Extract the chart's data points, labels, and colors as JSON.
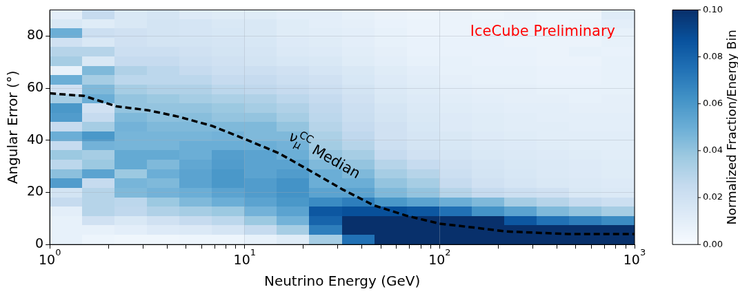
{
  "chart_data": {
    "type": "heatmap",
    "xlabel": "Neutrino Energy (GeV)",
    "ylabel": "Angular Error (°)",
    "clabel": "Normalized Fraction/Energy Bin",
    "log": "x",
    "grid": true,
    "xlim": [
      1,
      1000
    ],
    "xticks": [
      {
        "value": 1,
        "label": "10$^{0}$"
      },
      {
        "value": 2,
        "label": null
      },
      {
        "value": 3,
        "label": null
      },
      {
        "value": 4,
        "label": null
      },
      {
        "value": 5,
        "label": null
      },
      {
        "value": 6,
        "label": null
      },
      {
        "value": 7,
        "label": null
      },
      {
        "value": 8,
        "label": null
      },
      {
        "value": 9,
        "label": null
      },
      {
        "value": 10,
        "label": "10$^{1}$"
      },
      {
        "value": 20,
        "label": null
      },
      {
        "value": 30,
        "label": null
      },
      {
        "value": 40,
        "label": null
      },
      {
        "value": 50,
        "label": null
      },
      {
        "value": 60,
        "label": null
      },
      {
        "value": 70,
        "label": null
      },
      {
        "value": 80,
        "label": null
      },
      {
        "value": 90,
        "label": null
      },
      {
        "value": 100,
        "label": "10$^{2}$"
      },
      {
        "value": 200,
        "label": null
      },
      {
        "value": 300,
        "label": null
      },
      {
        "value": 400,
        "label": null
      },
      {
        "value": 500,
        "label": null
      },
      {
        "value": 600,
        "label": null
      },
      {
        "value": 700,
        "label": null
      },
      {
        "value": 800,
        "label": null
      },
      {
        "value": 900,
        "label": null
      },
      {
        "value": 1000,
        "label": "10$^{3}$"
      }
    ],
    "ylim": [
      0,
      90
    ],
    "yticks": [
      0,
      20,
      40,
      60,
      80
    ],
    "clim": [
      0,
      0.1
    ],
    "cticks": [
      {
        "value": 0,
        "label": "0.00"
      },
      0.02,
      0.04,
      0.06,
      0.08,
      {
        "value": 0.1,
        "label": "0.10"
      }
    ],
    "cells": [
      [
        0.01,
        0.025,
        0.015,
        0.017,
        0.013,
        0.012,
        0.012,
        0.01,
        0.01,
        0.008,
        0.006,
        0.005,
        0.006,
        0.005,
        0.006,
        0.005,
        0.005,
        0.012
      ],
      [
        0.015,
        0.012,
        0.015,
        0.018,
        0.017,
        0.015,
        0.015,
        0.012,
        0.01,
        0.009,
        0.007,
        0.006,
        0.006,
        0.006,
        0.006,
        0.005,
        0.006,
        0.01
      ],
      [
        0.05,
        0.022,
        0.02,
        0.018,
        0.017,
        0.016,
        0.015,
        0.012,
        0.011,
        0.01,
        0.008,
        0.006,
        0.006,
        0.006,
        0.006,
        0.006,
        0.006,
        0.008
      ],
      [
        0.02,
        0.015,
        0.02,
        0.018,
        0.018,
        0.017,
        0.016,
        0.013,
        0.012,
        0.01,
        0.008,
        0.007,
        0.007,
        0.007,
        0.006,
        0.006,
        0.006,
        0.008
      ],
      [
        0.03,
        0.03,
        0.022,
        0.022,
        0.02,
        0.018,
        0.017,
        0.014,
        0.013,
        0.011,
        0.009,
        0.007,
        0.007,
        0.007,
        0.007,
        0.006,
        0.008,
        0.007
      ],
      [
        0.035,
        0.015,
        0.025,
        0.025,
        0.022,
        0.02,
        0.018,
        0.016,
        0.015,
        0.012,
        0.01,
        0.008,
        0.008,
        0.007,
        0.007,
        0.006,
        0.006,
        0.008
      ],
      [
        0.008,
        0.045,
        0.032,
        0.028,
        0.025,
        0.022,
        0.022,
        0.02,
        0.017,
        0.015,
        0.012,
        0.01,
        0.008,
        0.008,
        0.008,
        0.007,
        0.007,
        0.008
      ],
      [
        0.05,
        0.035,
        0.028,
        0.028,
        0.028,
        0.025,
        0.025,
        0.022,
        0.02,
        0.016,
        0.013,
        0.011,
        0.009,
        0.008,
        0.008,
        0.007,
        0.007,
        0.008
      ],
      [
        0.02,
        0.045,
        0.035,
        0.032,
        0.032,
        0.028,
        0.027,
        0.025,
        0.022,
        0.018,
        0.014,
        0.012,
        0.01,
        0.009,
        0.009,
        0.008,
        0.008,
        0.008
      ],
      [
        0.035,
        0.05,
        0.04,
        0.038,
        0.035,
        0.033,
        0.032,
        0.028,
        0.025,
        0.02,
        0.015,
        0.013,
        0.011,
        0.01,
        0.009,
        0.009,
        0.008,
        0.009
      ],
      [
        0.06,
        0.02,
        0.04,
        0.04,
        0.04,
        0.038,
        0.035,
        0.032,
        0.027,
        0.022,
        0.017,
        0.014,
        0.012,
        0.011,
        0.01,
        0.01,
        0.009,
        0.009
      ],
      [
        0.058,
        0.025,
        0.045,
        0.042,
        0.043,
        0.04,
        0.04,
        0.035,
        0.028,
        0.023,
        0.018,
        0.015,
        0.013,
        0.012,
        0.011,
        0.01,
        0.01,
        0.01
      ],
      [
        0.025,
        0.035,
        0.048,
        0.045,
        0.045,
        0.045,
        0.045,
        0.04,
        0.03,
        0.025,
        0.02,
        0.016,
        0.013,
        0.012,
        0.011,
        0.011,
        0.01,
        0.01
      ],
      [
        0.05,
        0.06,
        0.047,
        0.047,
        0.047,
        0.048,
        0.045,
        0.045,
        0.033,
        0.027,
        0.02,
        0.017,
        0.015,
        0.013,
        0.012,
        0.011,
        0.011,
        0.011
      ],
      [
        0.025,
        0.048,
        0.047,
        0.047,
        0.05,
        0.05,
        0.05,
        0.048,
        0.036,
        0.03,
        0.022,
        0.018,
        0.016,
        0.014,
        0.013,
        0.012,
        0.011,
        0.011
      ],
      [
        0.038,
        0.035,
        0.052,
        0.052,
        0.05,
        0.057,
        0.055,
        0.05,
        0.04,
        0.035,
        0.025,
        0.02,
        0.017,
        0.015,
        0.014,
        0.013,
        0.012,
        0.011
      ],
      [
        0.028,
        0.038,
        0.052,
        0.045,
        0.053,
        0.058,
        0.055,
        0.055,
        0.045,
        0.04,
        0.03,
        0.025,
        0.02,
        0.017,
        0.015,
        0.014,
        0.013,
        0.012
      ],
      [
        0.042,
        0.055,
        0.038,
        0.05,
        0.055,
        0.06,
        0.055,
        0.058,
        0.05,
        0.045,
        0.035,
        0.03,
        0.022,
        0.018,
        0.016,
        0.014,
        0.013,
        0.012
      ],
      [
        0.058,
        0.025,
        0.047,
        0.045,
        0.055,
        0.06,
        0.058,
        0.062,
        0.05,
        0.05,
        0.04,
        0.035,
        0.025,
        0.02,
        0.017,
        0.015,
        0.014,
        0.013
      ],
      [
        0.018,
        0.03,
        0.045,
        0.048,
        0.05,
        0.055,
        0.058,
        0.062,
        0.055,
        0.055,
        0.045,
        0.04,
        0.03,
        0.025,
        0.022,
        0.02,
        0.015,
        0.014
      ],
      [
        0.025,
        0.03,
        0.028,
        0.038,
        0.045,
        0.05,
        0.055,
        0.06,
        0.065,
        0.07,
        0.06,
        0.055,
        0.05,
        0.045,
        0.035,
        0.03,
        0.025,
        0.022
      ],
      [
        0.01,
        0.03,
        0.027,
        0.032,
        0.035,
        0.038,
        0.048,
        0.055,
        0.085,
        0.088,
        0.088,
        0.085,
        0.075,
        0.062,
        0.055,
        0.045,
        0.04,
        0.035
      ],
      [
        0.008,
        0.02,
        0.015,
        0.02,
        0.025,
        0.028,
        0.038,
        0.048,
        0.08,
        0.1,
        0.1,
        0.1,
        0.1,
        0.1,
        0.085,
        0.075,
        0.07,
        0.065
      ],
      [
        0.008,
        0.008,
        0.01,
        0.013,
        0.014,
        0.017,
        0.025,
        0.035,
        0.07,
        0.1,
        0.1,
        0.1,
        0.1,
        0.1,
        0.1,
        0.1,
        0.1,
        0.1
      ],
      [
        0.008,
        0.005,
        0.004,
        0.004,
        0.005,
        0.005,
        0.008,
        0.012,
        0.035,
        0.075,
        0.1,
        0.1,
        0.1,
        0.1,
        0.1,
        0.1,
        0.1,
        0.1
      ]
    ],
    "series": [
      {
        "type": "line",
        "color": "#000000",
        "line_style": "dashed",
        "marker": "none",
        "x": [
          1,
          1.5,
          2.2,
          3.2,
          4.6,
          6.8,
          10,
          15,
          22,
          32,
          46,
          68,
          100,
          150,
          220,
          320,
          460,
          680,
          1000
        ],
        "values": [
          58,
          57,
          53,
          51.5,
          49,
          45.5,
          40.5,
          35,
          28,
          21,
          15,
          11,
          8,
          6.5,
          5,
          4.5,
          4,
          4,
          4
        ]
      }
    ],
    "annotations": [
      "ν$_{μ}$$^{CC}$ Median",
      "IceCube Preliminary"
    ]
  }
}
